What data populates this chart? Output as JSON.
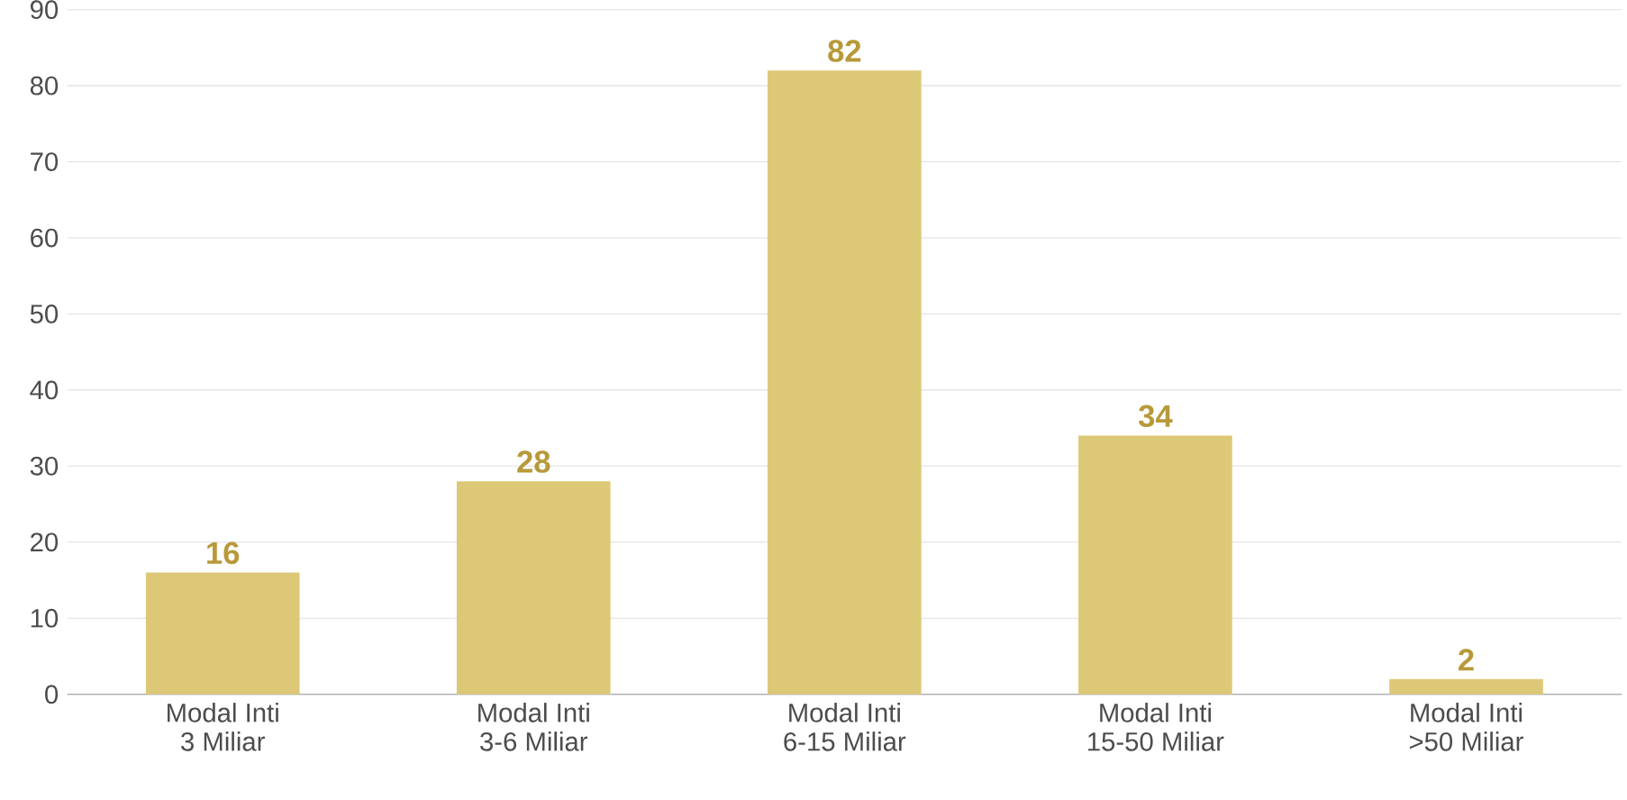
{
  "chart_data": {
    "type": "bar",
    "categories": [
      "Modal Inti\n3 Miliar",
      "Modal Inti\n3-6 Miliar",
      "Modal Inti\n6-15 Miliar",
      "Modal Inti\n15-50 Miliar",
      "Modal Inti\n>50 Miliar"
    ],
    "values": [
      16,
      28,
      82,
      34,
      2
    ],
    "color": "#ddc878",
    "data_labels": true,
    "ylim": [
      0,
      90
    ],
    "yticks": [
      0,
      10,
      20,
      30,
      40,
      50,
      60,
      70,
      80,
      90
    ],
    "grid": "y"
  }
}
